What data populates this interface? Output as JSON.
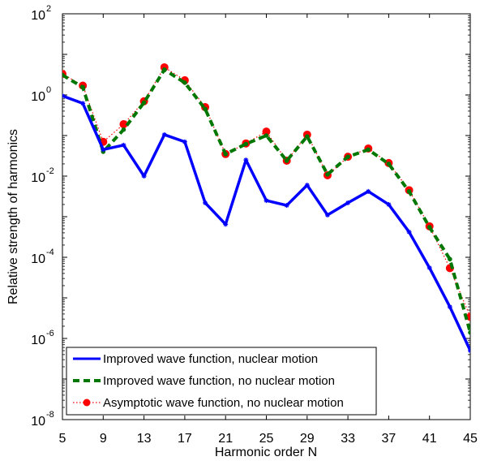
{
  "chart_data": {
    "type": "line",
    "xlabel": "Harmonic order N",
    "ylabel": "Relative strength of harmonics",
    "y_scale": "log",
    "xlim": [
      5,
      45
    ],
    "ylim_exponents": [
      -8,
      2
    ],
    "x_ticks": [
      "5",
      "9",
      "13",
      "17",
      "21",
      "25",
      "29",
      "33",
      "37",
      "41",
      "45"
    ],
    "x_tick_values": [
      5,
      9,
      13,
      17,
      21,
      25,
      29,
      33,
      37,
      41,
      45
    ],
    "y_tick_base": "10",
    "y_tick_exponents": [
      "-8",
      "-6",
      "-4",
      "-2",
      "0",
      "2"
    ],
    "grid": false,
    "legend_position": "bottom-left",
    "x": [
      5,
      7,
      9,
      11,
      13,
      15,
      17,
      19,
      21,
      23,
      25,
      27,
      29,
      31,
      33,
      35,
      37,
      39,
      41,
      43,
      45
    ],
    "series": [
      {
        "name": "Improved wave function, nuclear motion",
        "color": "#0000ff",
        "style": "solid-star",
        "values": [
          0.95,
          0.62,
          0.045,
          0.058,
          0.01,
          0.105,
          0.07,
          0.0022,
          0.00065,
          0.025,
          0.0025,
          0.0019,
          0.006,
          0.0011,
          0.0022,
          0.0042,
          0.002,
          0.00042,
          5.5e-05,
          6e-06,
          5e-07
        ]
      },
      {
        "name": "Improved wave function, no nuclear motion",
        "color": "#007700",
        "style": "dashed-dot",
        "values": [
          3.1,
          1.55,
          0.04,
          0.14,
          0.65,
          4.2,
          2.0,
          0.45,
          0.035,
          0.062,
          0.1,
          0.024,
          0.095,
          0.011,
          0.03,
          0.045,
          0.02,
          0.0042,
          0.00055,
          9e-05,
          1.4e-06
        ]
      },
      {
        "name": "Asymptotic wave function, no nuclear motion",
        "color": "#ff0000",
        "style": "dotted-circle",
        "values": [
          3.3,
          1.7,
          0.07,
          0.19,
          0.7,
          4.8,
          2.3,
          0.5,
          0.035,
          0.064,
          0.125,
          0.024,
          0.105,
          0.0105,
          0.03,
          0.048,
          0.021,
          0.0045,
          0.00058,
          5.4e-05,
          3.4e-06
        ]
      }
    ]
  }
}
